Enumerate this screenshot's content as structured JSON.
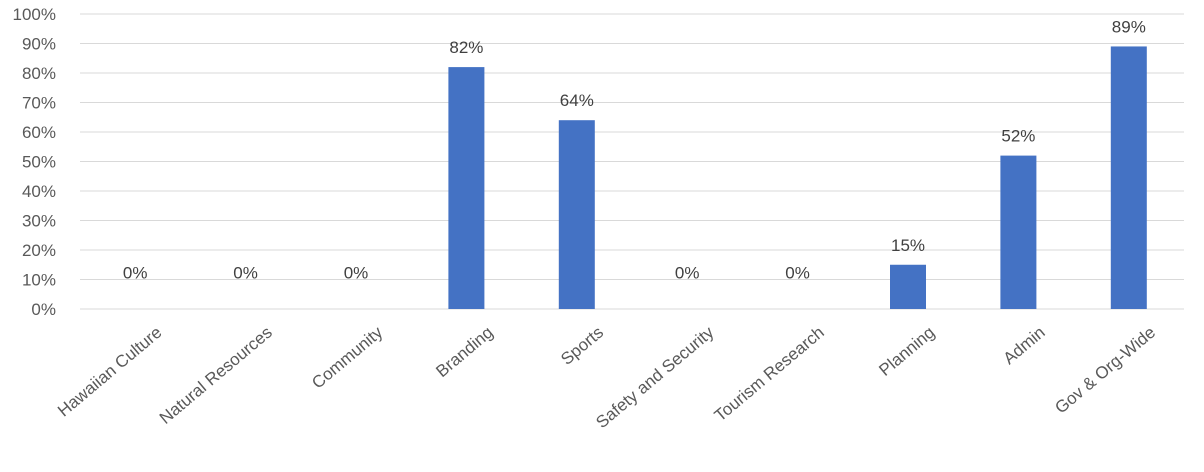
{
  "chart_data": {
    "type": "bar",
    "title": "",
    "xlabel": "",
    "ylabel": "",
    "categories": [
      "Hawaiian Culture",
      "Natural Resources",
      "Community",
      "Branding",
      "Sports",
      "Safety and Security",
      "Tourism Research",
      "Planning",
      "Admin",
      "Gov & Org-Wide"
    ],
    "values": [
      0,
      0,
      0,
      82,
      64,
      0,
      0,
      15,
      52,
      89
    ],
    "data_labels": [
      "0%",
      "0%",
      "0%",
      "82%",
      "64%",
      "0%",
      "0%",
      "15%",
      "52%",
      "89%"
    ],
    "y_ticks": [
      "0%",
      "10%",
      "20%",
      "30%",
      "40%",
      "50%",
      "60%",
      "70%",
      "80%",
      "90%",
      "100%"
    ],
    "ylim": [
      0,
      100
    ],
    "y_unit": "%",
    "grid": true,
    "legend": "none",
    "bar_color": "#4472c4"
  }
}
